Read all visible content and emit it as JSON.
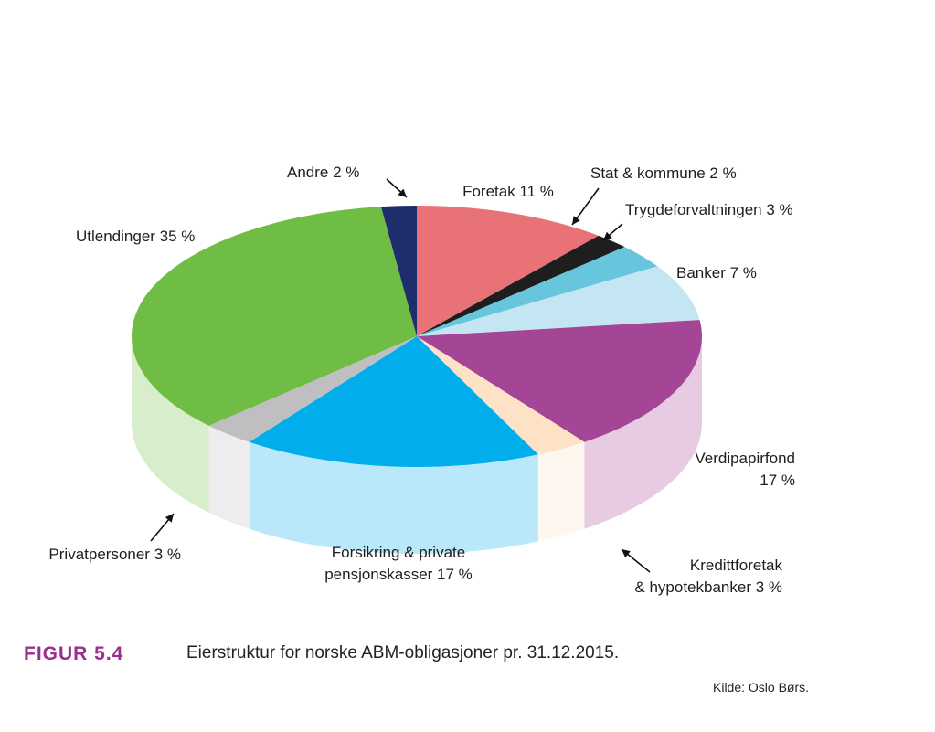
{
  "figure": {
    "number": "FIGUR 5.4",
    "caption": "Eierstruktur for norske ABM-obligasjoner pr. 31.12.2015.",
    "source": "Kilde: Oslo Børs."
  },
  "chart_data": {
    "type": "pie",
    "title": "Eierstruktur for norske ABM-obligasjoner pr. 31.12.2015.",
    "unit": "%",
    "slices": [
      {
        "name": "Foretak",
        "value": 11,
        "color": "#e97277",
        "label_lines": [
          "Foretak 11 %"
        ]
      },
      {
        "name": "Stat & kommune",
        "value": 2,
        "color": "#1e1e1e",
        "label_lines": [
          "Stat & kommune 2 %"
        ]
      },
      {
        "name": "Trygdeforvaltningen",
        "value": 3,
        "color": "#67c6dc",
        "label_lines": [
          "Trygdeforvaltningen 3 %"
        ]
      },
      {
        "name": "Banker",
        "value": 7,
        "color": "#c4e6f2",
        "label_lines": [
          "Banker 7 %"
        ]
      },
      {
        "name": "Verdipapirfond",
        "value": 17,
        "color": "#a44596",
        "label_lines": [
          "Verdipapirfond",
          "17 %"
        ]
      },
      {
        "name": "Kredittforetak & hypotekbanker",
        "value": 3,
        "color": "#fde2c6",
        "label_lines": [
          "Kredittforetak",
          "& hypotekbanker 3 %"
        ]
      },
      {
        "name": "Forsikring & private pensjonskasser",
        "value": 17,
        "color": "#02adec",
        "label_lines": [
          "Forsikring & private",
          "pensjonskasser 17 %"
        ]
      },
      {
        "name": "Privatpersoner",
        "value": 3,
        "color": "#bfbfc1",
        "label_lines": [
          "Privatpersoner 3 %"
        ]
      },
      {
        "name": "Utlendinger",
        "value": 35,
        "color": "#6fbd44",
        "label_lines": [
          "Utlendinger 35 %"
        ]
      },
      {
        "name": "Andre",
        "value": 2,
        "color": "#1e2d6b",
        "label_lines": [
          "Andre 2 %"
        ]
      }
    ],
    "legend": "none",
    "style": "3d-pie"
  }
}
